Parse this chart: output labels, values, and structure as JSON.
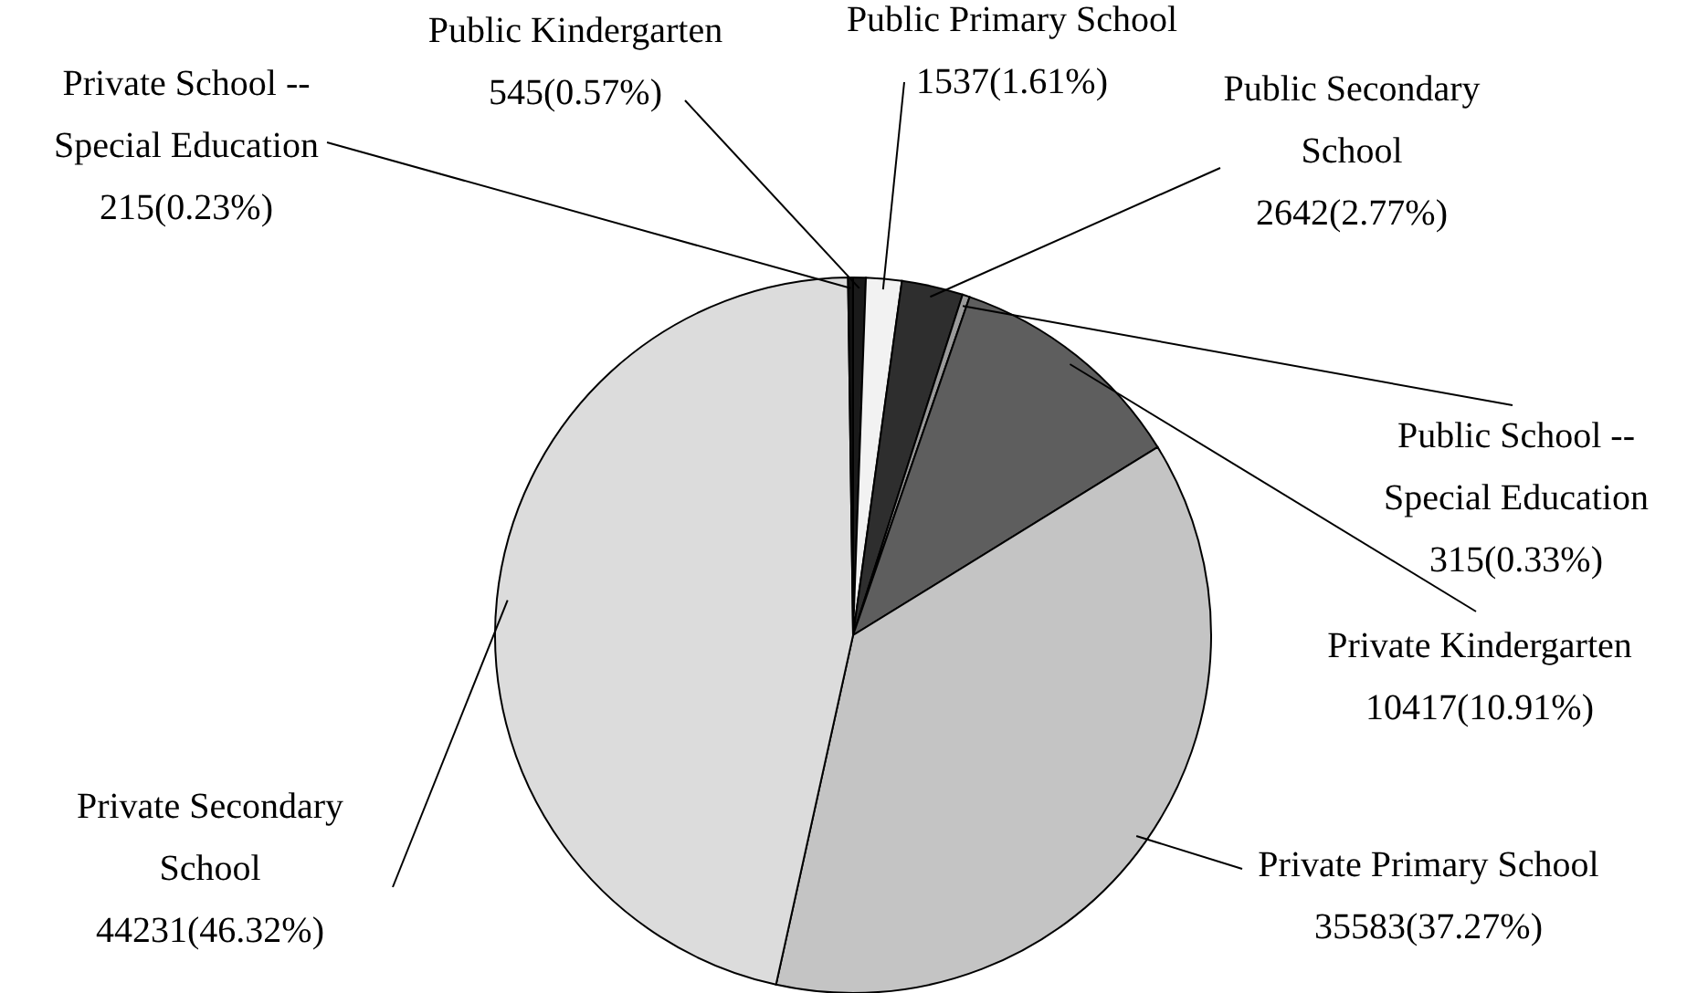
{
  "chart_data": {
    "type": "pie",
    "categories": [
      "Public Kindergarten",
      "Public Primary School",
      "Public Secondary School",
      "Public School -- Special Education",
      "Private Kindergarten",
      "Private Primary School",
      "Private Secondary School",
      "Private School -- Special Education"
    ],
    "values": [
      545,
      1537,
      2642,
      315,
      10417,
      35583,
      44231,
      215
    ],
    "value_labels": [
      "545(0.57%)",
      "1537(1.61%)",
      "2642(2.77%)",
      "315(0.33%)",
      "10417(10.91%)",
      "35583(37.27%)",
      "44231(46.32%)",
      "215(0.23%)"
    ],
    "colors": [
      "#1a1a1a",
      "#f2f2f2",
      "#2e2e2e",
      "#9a9a9a",
      "#5e5e5e",
      "#c4c4c4",
      "#dcdcdc",
      "#111111"
    ]
  }
}
